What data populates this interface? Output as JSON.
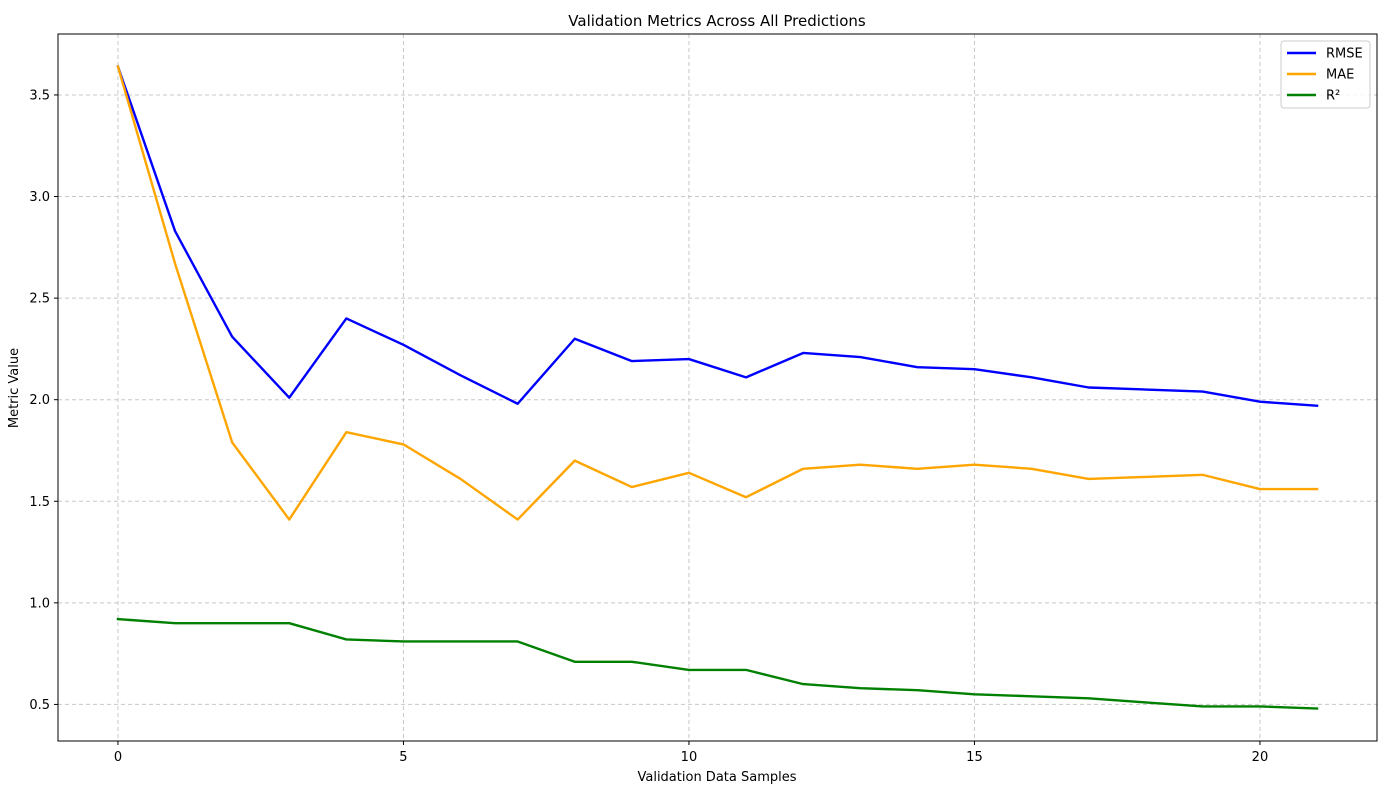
{
  "chart_data": {
    "type": "line",
    "title": "Validation Metrics Across All Predictions",
    "xlabel": "Validation Data Samples",
    "ylabel": "Metric Value",
    "x": [
      0,
      1,
      2,
      3,
      4,
      5,
      6,
      7,
      8,
      9,
      10,
      11,
      12,
      13,
      14,
      15,
      16,
      17,
      18,
      19,
      20,
      21
    ],
    "xlim": [
      -1.05,
      22.05
    ],
    "ylim": [
      0.32,
      3.8
    ],
    "xticks": [
      0,
      5,
      10,
      15,
      20
    ],
    "xtick_labels": [
      "0",
      "5",
      "10",
      "15",
      "20"
    ],
    "yticks": [
      0.5,
      1.0,
      1.5,
      2.0,
      2.5,
      3.0,
      3.5
    ],
    "ytick_labels": [
      "0.5",
      "1.0",
      "1.5",
      "2.0",
      "2.5",
      "3.0",
      "3.5"
    ],
    "grid": true,
    "legend_position": "top-right",
    "series": [
      {
        "name": "RMSE",
        "color": "#0000ff",
        "values": [
          3.64,
          2.83,
          2.31,
          2.01,
          2.4,
          2.27,
          2.12,
          1.98,
          2.3,
          2.19,
          2.2,
          2.11,
          2.23,
          2.21,
          2.16,
          2.15,
          2.11,
          2.06,
          2.05,
          2.04,
          1.99,
          1.97
        ]
      },
      {
        "name": "MAE",
        "color": "#ffa500",
        "values": [
          3.64,
          2.67,
          1.79,
          1.41,
          1.84,
          1.78,
          1.61,
          1.41,
          1.7,
          1.57,
          1.64,
          1.52,
          1.66,
          1.68,
          1.66,
          1.68,
          1.66,
          1.61,
          1.62,
          1.63,
          1.56,
          1.56
        ]
      },
      {
        "name": "R²",
        "color": "#008000",
        "values": [
          0.92,
          0.9,
          0.9,
          0.9,
          0.82,
          0.81,
          0.81,
          0.81,
          0.71,
          0.71,
          0.67,
          0.67,
          0.6,
          0.58,
          0.57,
          0.55,
          0.54,
          0.53,
          0.51,
          0.49,
          0.49,
          0.48
        ]
      }
    ]
  }
}
